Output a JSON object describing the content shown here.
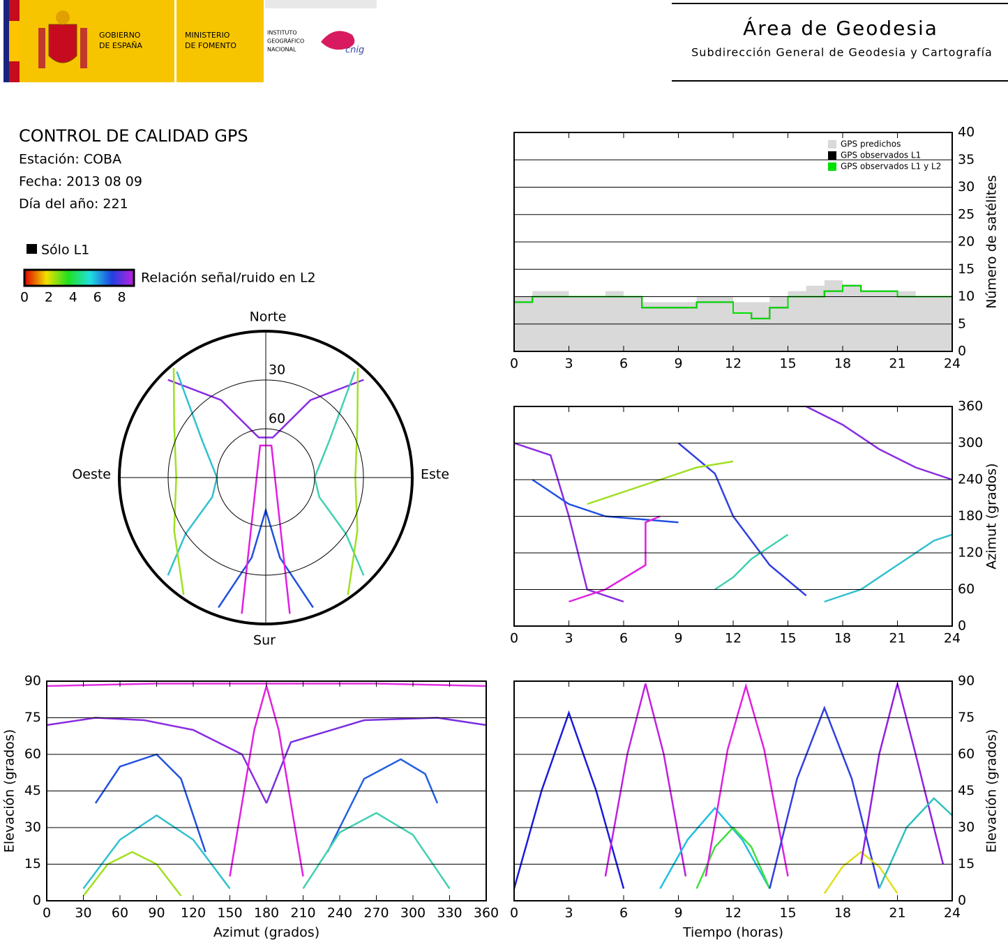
{
  "header": {
    "gobierno": [
      "GOBIERNO",
      "DE ESPAÑA"
    ],
    "ministerio": [
      "MINISTERIO",
      "DE FOMENTO"
    ],
    "instituto": [
      "INSTITUTO",
      "GEOGRÁFICO",
      "NACIONAL"
    ],
    "cnig": "cnig",
    "area": "Área de Geodesia",
    "subdireccion": "Subdirección General de Geodesia y Cartografía"
  },
  "info": {
    "title": "CONTROL DE CALIDAD GPS",
    "station": "Estación: COBA",
    "date": "Fecha: 2013 08 09",
    "doy": "Día del año: 221"
  },
  "legend": {
    "l1_only": "Sólo L1",
    "colorbar_label": "Relación señal/ruido en L2",
    "clim": [
      0,
      9
    ],
    "ticks": [
      0,
      2,
      4,
      6,
      8
    ]
  },
  "chart_data": [
    {
      "type": "line",
      "step": true,
      "ylabel": "Número de satélites",
      "x": [
        0,
        1,
        2,
        3,
        4,
        5,
        6,
        7,
        8,
        9,
        10,
        11,
        12,
        13,
        14,
        15,
        16,
        17,
        18,
        19,
        20,
        21,
        22,
        23,
        24
      ],
      "series": [
        {
          "name": "GPS predichos",
          "color": "#d9d9d9",
          "area": true,
          "values": [
            10,
            11,
            11,
            10,
            10,
            11,
            10,
            9,
            9,
            9,
            10,
            10,
            9,
            9,
            10,
            11,
            12,
            13,
            12,
            11,
            11,
            11,
            10,
            10,
            10
          ]
        },
        {
          "name": "GPS observados L1",
          "color": "#000000",
          "values": [
            9,
            10,
            10,
            10,
            10,
            10,
            10,
            8,
            8,
            8,
            9,
            9,
            7,
            6,
            8,
            10,
            10,
            11,
            12,
            11,
            11,
            10,
            10,
            10,
            10
          ]
        },
        {
          "name": "GPS observados L1 y L2",
          "color": "#00e000",
          "values": [
            9,
            10,
            10,
            10,
            10,
            10,
            10,
            8,
            8,
            8,
            9,
            9,
            7,
            6,
            8,
            10,
            10,
            11,
            12,
            11,
            11,
            10,
            10,
            10,
            10
          ]
        }
      ],
      "xlim": [
        0,
        24
      ],
      "xticks": [
        0,
        3,
        6,
        9,
        12,
        15,
        18,
        21,
        24
      ],
      "ylim": [
        0,
        40
      ],
      "yticks": [
        0,
        5,
        10,
        15,
        20,
        25,
        30,
        35,
        40
      ],
      "grid": true
    },
    {
      "type": "line",
      "ylabel": "Azimut (grados)",
      "series": [
        {
          "color": "#8a2be2",
          "x": [
            0,
            2,
            3,
            4,
            6
          ],
          "values": [
            300,
            280,
            180,
            60,
            40
          ]
        },
        {
          "color": "#2050e0",
          "x": [
            1,
            3,
            5,
            7,
            9
          ],
          "values": [
            240,
            200,
            180,
            175,
            170
          ]
        },
        {
          "color": "#e020e0",
          "x": [
            3,
            5,
            7.2,
            7.2,
            8
          ],
          "values": [
            40,
            60,
            100,
            170,
            180
          ]
        },
        {
          "color": "#3040e0",
          "x": [
            9,
            11,
            12,
            14,
            16
          ],
          "values": [
            300,
            250,
            180,
            100,
            50
          ]
        },
        {
          "color": "#40d0b0",
          "x": [
            11,
            12,
            13,
            14,
            15
          ],
          "values": [
            60,
            80,
            110,
            130,
            150
          ]
        },
        {
          "color": "#8a2be2",
          "x": [
            16,
            18,
            20,
            22,
            24
          ],
          "values": [
            360,
            330,
            290,
            260,
            240
          ]
        },
        {
          "color": "#30c0d0",
          "x": [
            17,
            19,
            21,
            23,
            24
          ],
          "values": [
            40,
            60,
            100,
            140,
            150
          ]
        },
        {
          "color": "#a0e020",
          "x": [
            4,
            6,
            8,
            10,
            12
          ],
          "values": [
            200,
            220,
            240,
            260,
            270
          ]
        }
      ],
      "xlim": [
        0,
        24
      ],
      "xticks": [
        0,
        3,
        6,
        9,
        12,
        15,
        18,
        21,
        24
      ],
      "ylim": [
        0,
        360
      ],
      "yticks": [
        0,
        60,
        120,
        180,
        240,
        300,
        360
      ],
      "grid": true
    },
    {
      "type": "polar",
      "directions": [
        "Norte",
        "Este",
        "Sur",
        "Oeste"
      ],
      "rlim": [
        0,
        90
      ],
      "rticks": [
        30,
        60
      ],
      "series": [
        {
          "color": "#8a2be2",
          "x": [
            315,
            330,
            350,
            10,
            30,
            45
          ],
          "values": [
            5,
            35,
            65,
            65,
            35,
            5
          ]
        },
        {
          "color": "#2050e0",
          "x": [
            200,
            190,
            180,
            170,
            160
          ],
          "values": [
            5,
            40,
            70,
            40,
            5
          ]
        },
        {
          "color": "#30c0d0",
          "x": [
            225,
            235,
            250,
            270,
            300,
            320
          ],
          "values": [
            5,
            30,
            55,
            60,
            45,
            5
          ]
        },
        {
          "color": "#40d0b0",
          "x": [
            135,
            125,
            110,
            90,
            60,
            40
          ],
          "values": [
            5,
            30,
            55,
            60,
            45,
            5
          ]
        },
        {
          "color": "#a0e020",
          "x": [
            320,
            300,
            270,
            240,
            215
          ],
          "values": [
            2,
            25,
            35,
            25,
            2
          ]
        },
        {
          "color": "#a0e020",
          "x": [
            40,
            60,
            90,
            120,
            145
          ],
          "values": [
            2,
            25,
            35,
            25,
            2
          ]
        },
        {
          "color": "#e020e0",
          "x": [
            190,
            350,
            10,
            170
          ],
          "values": [
            5,
            70,
            70,
            5
          ]
        }
      ]
    },
    {
      "type": "line",
      "xlabel": "Azimut (grados)",
      "ylabel": "Elevación (grados)",
      "series": [
        {
          "color": "#8a2be2",
          "x": [
            0,
            40,
            80,
            120,
            160,
            180
          ],
          "values": [
            72,
            75,
            74,
            70,
            60,
            40
          ]
        },
        {
          "color": "#7a30e0",
          "x": [
            180,
            200,
            260,
            320,
            360
          ],
          "values": [
            40,
            65,
            74,
            75,
            72
          ]
        },
        {
          "color": "#2050e0",
          "x": [
            40,
            60,
            90,
            110,
            130
          ],
          "values": [
            40,
            55,
            60,
            50,
            20
          ]
        },
        {
          "color": "#2060e0",
          "x": [
            230,
            260,
            290,
            310,
            320
          ],
          "values": [
            20,
            50,
            58,
            52,
            40
          ]
        },
        {
          "color": "#30c0d0",
          "x": [
            30,
            60,
            90,
            120,
            150
          ],
          "values": [
            5,
            25,
            35,
            25,
            5
          ]
        },
        {
          "color": "#40d0b0",
          "x": [
            210,
            240,
            270,
            300,
            330
          ],
          "values": [
            5,
            28,
            36,
            27,
            5
          ]
        },
        {
          "color": "#a0e020",
          "x": [
            30,
            50,
            70,
            90,
            110
          ],
          "values": [
            2,
            15,
            20,
            15,
            2
          ]
        },
        {
          "color": "#e020e0",
          "x": [
            150,
            170,
            180,
            190,
            210
          ],
          "values": [
            10,
            70,
            88,
            70,
            10
          ]
        },
        {
          "color": "#e030e0",
          "x": [
            0,
            90,
            180,
            270,
            360
          ],
          "values": [
            88,
            89,
            89,
            89,
            88
          ]
        }
      ],
      "xlim": [
        0,
        360
      ],
      "xticks": [
        0,
        30,
        60,
        90,
        120,
        150,
        180,
        210,
        240,
        270,
        300,
        330,
        360
      ],
      "ylim": [
        0,
        90
      ],
      "yticks": [
        0,
        15,
        30,
        45,
        60,
        75,
        90
      ],
      "grid": true
    },
    {
      "type": "line",
      "xlabel": "Tiempo (horas)",
      "ylabel": "Elevación (grados)",
      "series": [
        {
          "color": "#1a1adc",
          "x": [
            0,
            1.5,
            3,
            4.5,
            6
          ],
          "values": [
            5,
            45,
            77,
            45,
            5
          ]
        },
        {
          "color": "#c020e0",
          "x": [
            5,
            6.2,
            7.2,
            8.2,
            9.4
          ],
          "values": [
            10,
            60,
            89,
            60,
            10
          ]
        },
        {
          "color": "#20c0e0",
          "x": [
            8,
            9.5,
            11,
            12.5,
            14
          ],
          "values": [
            5,
            25,
            38,
            25,
            5
          ]
        },
        {
          "color": "#40e040",
          "x": [
            10,
            11,
            12,
            13,
            14
          ],
          "values": [
            5,
            22,
            30,
            22,
            5
          ]
        },
        {
          "color": "#e020e0",
          "x": [
            10.5,
            11.7,
            12.7,
            13.7,
            15
          ],
          "values": [
            10,
            62,
            88,
            62,
            10
          ]
        },
        {
          "color": "#3040e0",
          "x": [
            14,
            15.5,
            17,
            18.5,
            20
          ],
          "values": [
            5,
            50,
            79,
            50,
            5
          ]
        },
        {
          "color": "#e0e020",
          "x": [
            17,
            18,
            19,
            20,
            21
          ],
          "values": [
            3,
            14,
            20,
            14,
            3
          ]
        },
        {
          "color": "#9020e0",
          "x": [
            19,
            20,
            21,
            22,
            23.5
          ],
          "values": [
            15,
            60,
            89,
            60,
            15
          ]
        },
        {
          "color": "#30c0c0",
          "x": [
            20,
            21.5,
            23,
            24
          ],
          "values": [
            5,
            30,
            42,
            35
          ]
        }
      ],
      "xlim": [
        0,
        24
      ],
      "xticks": [
        0,
        3,
        6,
        9,
        12,
        15,
        18,
        21,
        24
      ],
      "ylim": [
        0,
        90
      ],
      "yticks": [
        0,
        15,
        30,
        45,
        60,
        75,
        90
      ],
      "grid": true
    }
  ]
}
